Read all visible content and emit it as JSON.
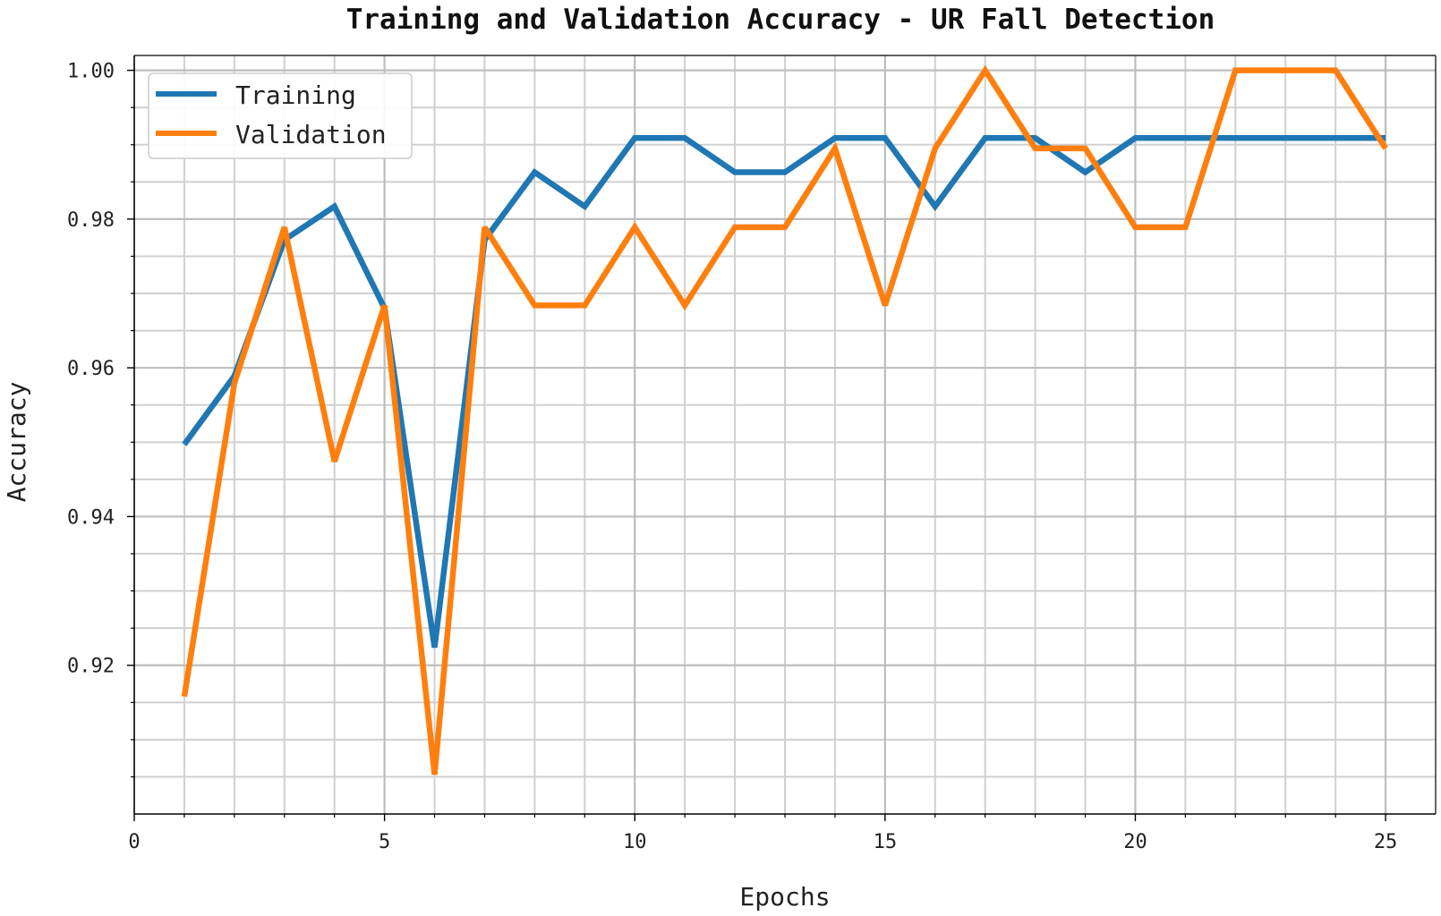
{
  "chart_data": {
    "type": "line",
    "title": "Training and Validation Accuracy - UR Fall Detection",
    "xlabel": "Epochs",
    "ylabel": "Accuracy",
    "xlim": [
      0,
      26
    ],
    "ylim": [
      0.9,
      1.002
    ],
    "xticks": [
      0,
      5,
      10,
      15,
      20,
      25
    ],
    "xtick_labels": [
      "0",
      "5",
      "10",
      "15",
      "20",
      "25"
    ],
    "yticks": [
      0.92,
      0.94,
      0.96,
      0.98,
      1.0
    ],
    "ytick_labels": [
      "0.92",
      "0.94",
      "0.96",
      "0.98",
      "1.00"
    ],
    "grid": true,
    "minor_grid": true,
    "legend_position": "top-left",
    "x": [
      1,
      2,
      3,
      4,
      5,
      6,
      7,
      8,
      9,
      10,
      11,
      12,
      13,
      14,
      15,
      16,
      17,
      18,
      19,
      20,
      21,
      22,
      23,
      24,
      25
    ],
    "series": [
      {
        "name": "Training",
        "color": "#1f77b4",
        "values": [
          0.9497,
          0.9589,
          0.9772,
          0.9817,
          0.968,
          0.9224,
          0.9772,
          0.9863,
          0.9817,
          0.9909,
          0.9909,
          0.9863,
          0.9863,
          0.9909,
          0.9909,
          0.9817,
          0.9909,
          0.9909,
          0.9863,
          0.9909,
          0.9909,
          0.9909,
          0.9909,
          0.9909,
          0.9909
        ]
      },
      {
        "name": "Validation",
        "color": "#ff7f0e",
        "values": [
          0.9158,
          0.9579,
          0.9789,
          0.9474,
          0.9684,
          0.9053,
          0.9789,
          0.9684,
          0.9684,
          0.9789,
          0.9684,
          0.9789,
          0.9789,
          0.9895,
          0.9684,
          0.9895,
          1.0,
          0.9895,
          0.9895,
          0.9789,
          0.9789,
          1.0,
          1.0,
          1.0,
          0.9895
        ]
      }
    ]
  }
}
